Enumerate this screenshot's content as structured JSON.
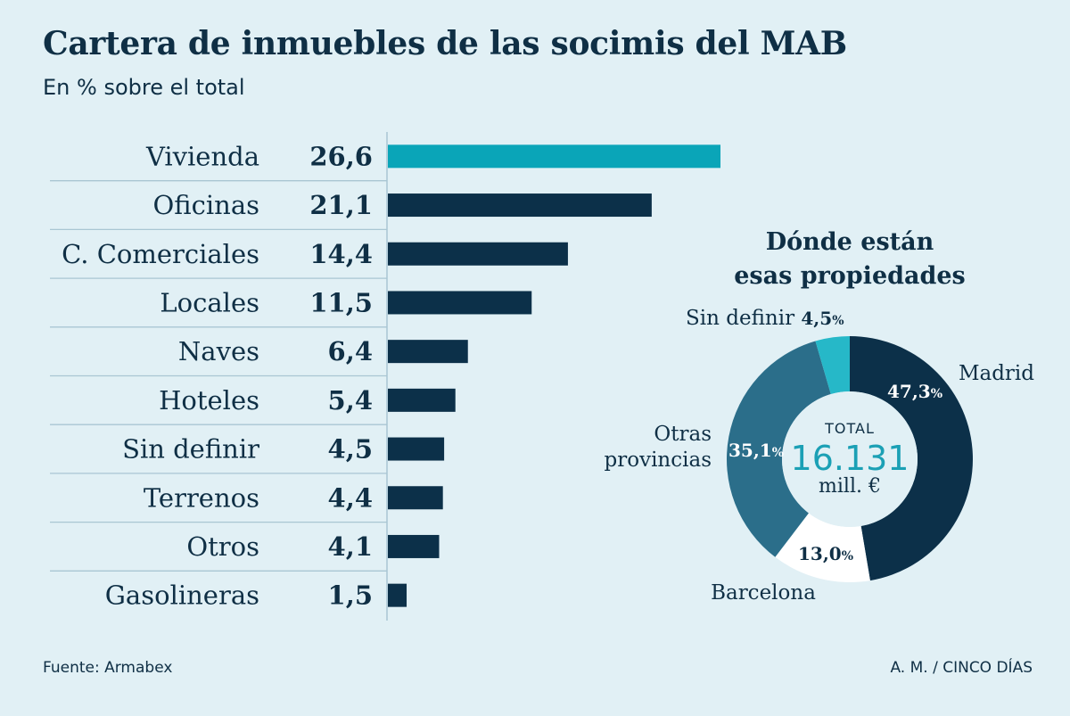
{
  "title": "Cartera de inmuebles de las socimis del MAB",
  "subtitle": "En % sobre el total",
  "colors": {
    "highlight": "#0aa5b8",
    "bar": "#0c3049",
    "text": "#0f2f45",
    "background": "#e1f0f5",
    "divider": "#a9c6d3"
  },
  "chart_data": [
    {
      "type": "bar",
      "orientation": "horizontal",
      "title": "Cartera de inmuebles de las socimis del MAB",
      "unit": "En % sobre el total",
      "categories": [
        "Vivienda",
        "Oficinas",
        "C. Comerciales",
        "Locales",
        "Naves",
        "Hoteles",
        "Sin definir",
        "Terrenos",
        "Otros",
        "Gasolineras"
      ],
      "values": [
        26.6,
        21.1,
        14.4,
        11.5,
        6.4,
        5.4,
        4.5,
        4.4,
        4.1,
        1.5
      ],
      "value_labels": [
        "26,6",
        "21,1",
        "14,4",
        "11,5",
        "6,4",
        "5,4",
        "4,5",
        "4,4",
        "4,1",
        "1,5"
      ],
      "highlighted_category": "Vivienda"
    },
    {
      "type": "pie",
      "variant": "donut",
      "title_lines": [
        "Dónde están",
        "esas propiedades"
      ],
      "slices": [
        {
          "name": "Madrid",
          "value": 47.3,
          "label": "47,3",
          "color": "#0c3049",
          "pct_color": "#ffffff"
        },
        {
          "name": "Barcelona",
          "value": 13.0,
          "label": "13,0",
          "color": "#ffffff",
          "pct_color": "#0f2f45"
        },
        {
          "name_lines": [
            "Otras",
            "provincias"
          ],
          "name": "Otras provincias",
          "value": 35.1,
          "label": "35,1",
          "color": "#2b6e8a",
          "pct_color": "#ffffff"
        },
        {
          "name": "Sin definir",
          "value": 4.5,
          "label": "4,5",
          "color": "#26b8c8",
          "pct_color": "#0f2f45"
        }
      ],
      "center": {
        "label": "TOTAL",
        "value": "16.131",
        "unit": "mill. €"
      },
      "pct_symbol": "%"
    }
  ],
  "footer": {
    "source": "Fuente: Armabex",
    "credit": "A. M. / CINCO DÍAS"
  }
}
